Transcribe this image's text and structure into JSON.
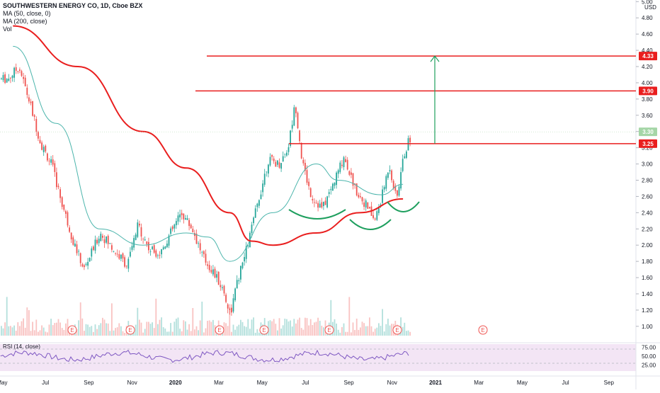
{
  "legend": {
    "symbol": "SOUTHWESTERN ENERGY CO, 1D, Cboe BZX",
    "ma50": "MA (50, close, 0)",
    "ma200": "MA (200, close)",
    "vol": "Vol",
    "rsi": "RSI (14, close)"
  },
  "currency": "USD",
  "colors": {
    "up": "#26a69a",
    "down": "#ef5350",
    "ma50": "#4cb5ac",
    "ma200": "#e91e1e",
    "drawing_red": "#e91e1e",
    "drawing_green": "#1e9f5e",
    "rsi_line": "#7e57c2",
    "rsi_band": "#f3e5f5",
    "earnings": "#ef5350"
  },
  "chart_data": {
    "type": "candlestick",
    "xlabels": [
      "May",
      "Jul",
      "Sep",
      "Nov",
      "2020",
      "Mar",
      "May",
      "Jul",
      "Sep",
      "Nov",
      "2021",
      "Mar",
      "May",
      "Jul",
      "Sep"
    ],
    "price_ticks": [
      "5.00",
      "4.80",
      "4.60",
      "4.40",
      "4.20",
      "4.00",
      "3.80",
      "3.60",
      "3.40",
      "3.20",
      "3.00",
      "2.80",
      "2.60",
      "2.40",
      "2.20",
      "2.00",
      "1.80",
      "1.60",
      "1.40",
      "1.20",
      "1.00"
    ],
    "price_range": [
      0.92,
      5.02
    ],
    "rsi_ticks": [
      "75.00",
      "50.00",
      "25.00"
    ],
    "rsi_band": [
      30,
      70
    ],
    "price_series": [
      {
        "date": "2019-05",
        "price": 4.05
      },
      {
        "date": "2019-05",
        "price": 4.2
      },
      {
        "date": "2019-06",
        "price": 3.75
      },
      {
        "date": "2019-06",
        "price": 3.25
      },
      {
        "date": "2019-07",
        "price": 3.0
      },
      {
        "date": "2019-07",
        "price": 2.5
      },
      {
        "date": "2019-08",
        "price": 2.05
      },
      {
        "date": "2019-08",
        "price": 1.7
      },
      {
        "date": "2019-09",
        "price": 2.15
      },
      {
        "date": "2019-10",
        "price": 1.9
      },
      {
        "date": "2019-10",
        "price": 1.75
      },
      {
        "date": "2019-11",
        "price": 2.25
      },
      {
        "date": "2019-11",
        "price": 1.95
      },
      {
        "date": "2019-12",
        "price": 1.9
      },
      {
        "date": "2019-12",
        "price": 2.15
      },
      {
        "date": "2020-01",
        "price": 2.4
      },
      {
        "date": "2020-01",
        "price": 2.2
      },
      {
        "date": "2020-02",
        "price": 1.85
      },
      {
        "date": "2020-02",
        "price": 1.65
      },
      {
        "date": "2020-03",
        "price": 1.45
      },
      {
        "date": "2020-03",
        "price": 1.15
      },
      {
        "date": "2020-03",
        "price": 1.55
      },
      {
        "date": "2020-04",
        "price": 1.95
      },
      {
        "date": "2020-04",
        "price": 2.5
      },
      {
        "date": "2020-05",
        "price": 3.05
      },
      {
        "date": "2020-05",
        "price": 3.0
      },
      {
        "date": "2020-06",
        "price": 3.2
      },
      {
        "date": "2020-06",
        "price": 3.75
      },
      {
        "date": "2020-06",
        "price": 3.0
      },
      {
        "date": "2020-07",
        "price": 2.6
      },
      {
        "date": "2020-07",
        "price": 2.45
      },
      {
        "date": "2020-08",
        "price": 2.75
      },
      {
        "date": "2020-08",
        "price": 3.1
      },
      {
        "date": "2020-09",
        "price": 2.7
      },
      {
        "date": "2020-09",
        "price": 2.5
      },
      {
        "date": "2020-10",
        "price": 2.3
      },
      {
        "date": "2020-10",
        "price": 2.6
      },
      {
        "date": "2020-10",
        "price": 3.0
      },
      {
        "date": "2020-11",
        "price": 2.55
      },
      {
        "date": "2020-11",
        "price": 3.1
      },
      {
        "date": "2020-11",
        "price": 3.35
      }
    ],
    "ma200_series": [
      {
        "date": "2019-05",
        "price": 4.7
      },
      {
        "date": "2019-08",
        "price": 4.2
      },
      {
        "date": "2019-11",
        "price": 3.4
      },
      {
        "date": "2020-01",
        "price": 2.95
      },
      {
        "date": "2020-03",
        "price": 2.4
      },
      {
        "date": "2020-04",
        "price": 2.05
      },
      {
        "date": "2020-05",
        "price": 2.0
      },
      {
        "date": "2020-07",
        "price": 2.15
      },
      {
        "date": "2020-09",
        "price": 2.4
      },
      {
        "date": "2020-11",
        "price": 2.57
      }
    ],
    "ma50_series": [
      {
        "date": "2019-05",
        "price": 4.45
      },
      {
        "date": "2019-07",
        "price": 3.5
      },
      {
        "date": "2019-09",
        "price": 2.2
      },
      {
        "date": "2019-11",
        "price": 2.0
      },
      {
        "date": "2020-01",
        "price": 2.15
      },
      {
        "date": "2020-02",
        "price": 2.1
      },
      {
        "date": "2020-03",
        "price": 1.8
      },
      {
        "date": "2020-05",
        "price": 2.4
      },
      {
        "date": "2020-07",
        "price": 3.0
      },
      {
        "date": "2020-08",
        "price": 2.8
      },
      {
        "date": "2020-10",
        "price": 2.62
      },
      {
        "date": "2020-11",
        "price": 2.75
      }
    ],
    "horizontal_levels": [
      {
        "price": 4.33,
        "label": "4.33"
      },
      {
        "price": 3.9,
        "label": "3.90"
      },
      {
        "price": 3.25,
        "label": "3.25"
      }
    ],
    "last_price_label": "3.30",
    "target_arrow": {
      "from": 3.25,
      "to": 4.33
    },
    "earnings_marker": "E"
  }
}
